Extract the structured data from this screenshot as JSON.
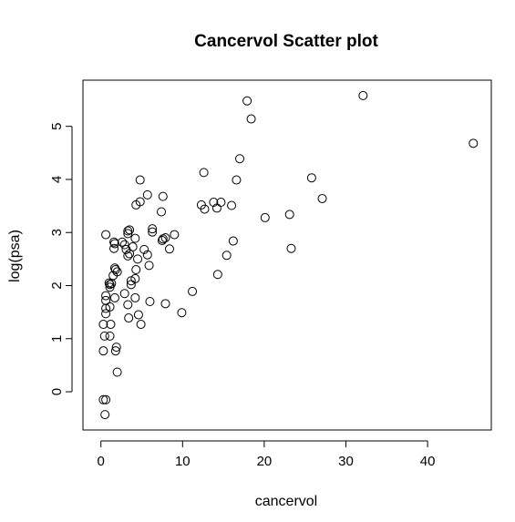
{
  "chart_data": {
    "type": "scatter",
    "title": "Cancervol Scatter plot",
    "xlabel": "cancervol",
    "ylabel": "log(psa)",
    "xlim": [
      -2.2,
      47.8
    ],
    "ylim": [
      -0.72,
      5.87
    ],
    "x_ticks": [
      0,
      10,
      20,
      30,
      40
    ],
    "y_ticks": [
      0,
      1,
      2,
      3,
      4,
      5
    ],
    "grid": false,
    "marker": "open-circle",
    "points": [
      {
        "x": 0.3,
        "y": -0.15
      },
      {
        "x": 0.6,
        "y": -0.15
      },
      {
        "x": 0.5,
        "y": -0.43
      },
      {
        "x": 2.0,
        "y": 0.37
      },
      {
        "x": 0.3,
        "y": 0.77
      },
      {
        "x": 1.8,
        "y": 0.77
      },
      {
        "x": 1.9,
        "y": 0.84
      },
      {
        "x": 0.45,
        "y": 1.05
      },
      {
        "x": 1.1,
        "y": 1.05
      },
      {
        "x": 0.3,
        "y": 1.27
      },
      {
        "x": 1.2,
        "y": 1.27
      },
      {
        "x": 4.9,
        "y": 1.27
      },
      {
        "x": 3.4,
        "y": 1.39
      },
      {
        "x": 4.6,
        "y": 1.45
      },
      {
        "x": 0.6,
        "y": 1.47
      },
      {
        "x": 9.9,
        "y": 1.49
      },
      {
        "x": 0.6,
        "y": 1.57
      },
      {
        "x": 1.1,
        "y": 1.6
      },
      {
        "x": 3.3,
        "y": 1.64
      },
      {
        "x": 7.9,
        "y": 1.66
      },
      {
        "x": 6.0,
        "y": 1.7
      },
      {
        "x": 0.6,
        "y": 1.72
      },
      {
        "x": 4.2,
        "y": 1.77
      },
      {
        "x": 1.7,
        "y": 1.77
      },
      {
        "x": 0.6,
        "y": 1.81
      },
      {
        "x": 2.9,
        "y": 1.85
      },
      {
        "x": 11.2,
        "y": 1.89
      },
      {
        "x": 1.1,
        "y": 1.97
      },
      {
        "x": 1.1,
        "y": 2.02
      },
      {
        "x": 3.7,
        "y": 2.02
      },
      {
        "x": 1.3,
        "y": 2.04
      },
      {
        "x": 1.0,
        "y": 2.05
      },
      {
        "x": 3.7,
        "y": 2.09
      },
      {
        "x": 4.2,
        "y": 2.13
      },
      {
        "x": 1.5,
        "y": 2.19
      },
      {
        "x": 14.3,
        "y": 2.21
      },
      {
        "x": 2.0,
        "y": 2.26
      },
      {
        "x": 1.8,
        "y": 2.3
      },
      {
        "x": 4.3,
        "y": 2.3
      },
      {
        "x": 1.7,
        "y": 2.33
      },
      {
        "x": 5.9,
        "y": 2.38
      },
      {
        "x": 4.5,
        "y": 2.5
      },
      {
        "x": 3.3,
        "y": 2.56
      },
      {
        "x": 15.4,
        "y": 2.57
      },
      {
        "x": 5.7,
        "y": 2.58
      },
      {
        "x": 3.5,
        "y": 2.6
      },
      {
        "x": 3.1,
        "y": 2.68
      },
      {
        "x": 5.3,
        "y": 2.68
      },
      {
        "x": 8.4,
        "y": 2.69
      },
      {
        "x": 23.3,
        "y": 2.7
      },
      {
        "x": 1.6,
        "y": 2.7
      },
      {
        "x": 3.9,
        "y": 2.73
      },
      {
        "x": 2.9,
        "y": 2.77
      },
      {
        "x": 1.7,
        "y": 2.79
      },
      {
        "x": 1.6,
        "y": 2.82
      },
      {
        "x": 2.6,
        "y": 2.82
      },
      {
        "x": 16.2,
        "y": 2.84
      },
      {
        "x": 7.5,
        "y": 2.85
      },
      {
        "x": 7.6,
        "y": 2.88
      },
      {
        "x": 4.2,
        "y": 2.89
      },
      {
        "x": 7.9,
        "y": 2.9
      },
      {
        "x": 0.6,
        "y": 2.96
      },
      {
        "x": 9.0,
        "y": 2.96
      },
      {
        "x": 3.3,
        "y": 2.98
      },
      {
        "x": 6.3,
        "y": 3.01
      },
      {
        "x": 3.3,
        "y": 3.03
      },
      {
        "x": 3.5,
        "y": 3.05
      },
      {
        "x": 6.3,
        "y": 3.07
      },
      {
        "x": 20.1,
        "y": 3.28
      },
      {
        "x": 23.1,
        "y": 3.34
      },
      {
        "x": 7.4,
        "y": 3.39
      },
      {
        "x": 12.7,
        "y": 3.44
      },
      {
        "x": 14.2,
        "y": 3.46
      },
      {
        "x": 12.3,
        "y": 3.52
      },
      {
        "x": 16.0,
        "y": 3.51
      },
      {
        "x": 4.3,
        "y": 3.52
      },
      {
        "x": 13.8,
        "y": 3.57
      },
      {
        "x": 14.7,
        "y": 3.57
      },
      {
        "x": 4.8,
        "y": 3.58
      },
      {
        "x": 27.1,
        "y": 3.64
      },
      {
        "x": 7.6,
        "y": 3.68
      },
      {
        "x": 5.7,
        "y": 3.71
      },
      {
        "x": 16.6,
        "y": 3.99
      },
      {
        "x": 4.8,
        "y": 3.99
      },
      {
        "x": 25.8,
        "y": 4.03
      },
      {
        "x": 12.6,
        "y": 4.13
      },
      {
        "x": 17.0,
        "y": 4.39
      },
      {
        "x": 45.6,
        "y": 4.68
      },
      {
        "x": 18.4,
        "y": 5.14
      },
      {
        "x": 17.9,
        "y": 5.48
      },
      {
        "x": 32.1,
        "y": 5.58
      }
    ]
  }
}
